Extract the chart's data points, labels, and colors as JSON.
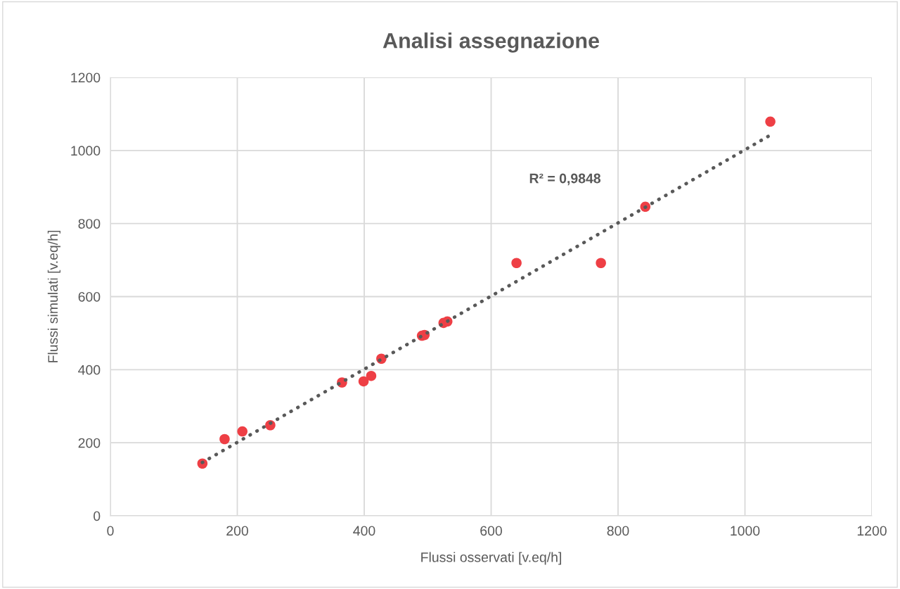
{
  "chart_data": {
    "type": "scatter",
    "title": "Analisi assegnazione",
    "xlabel": "Flussi osservati [v.eq/h]",
    "ylabel": "Flussi simulati [v.eq/h]",
    "xlim": [
      0,
      1200
    ],
    "ylim": [
      0,
      1200
    ],
    "xticks": [
      0,
      200,
      400,
      600,
      800,
      1000,
      1200
    ],
    "yticks": [
      0,
      200,
      400,
      600,
      800,
      1000,
      1200
    ],
    "grid": true,
    "legend": false,
    "marker": "circle",
    "series": [
      {
        "color": "#ee3f45",
        "x": [
          145,
          180,
          208,
          252,
          365,
          399,
          411,
          427,
          491,
          495,
          525,
          531,
          640,
          773,
          843,
          1040
        ],
        "values": [
          143,
          210,
          231,
          248,
          365,
          368,
          383,
          430,
          493,
          495,
          528,
          532,
          692,
          692,
          846,
          1079
        ]
      },
      {
        "type": "line",
        "color": "#595959",
        "line_style": "dotted",
        "marker": "none",
        "x": [
          145,
          1040
        ],
        "values": [
          146,
          1042
        ]
      }
    ],
    "annotations": [
      "R² = 0,9848"
    ]
  }
}
